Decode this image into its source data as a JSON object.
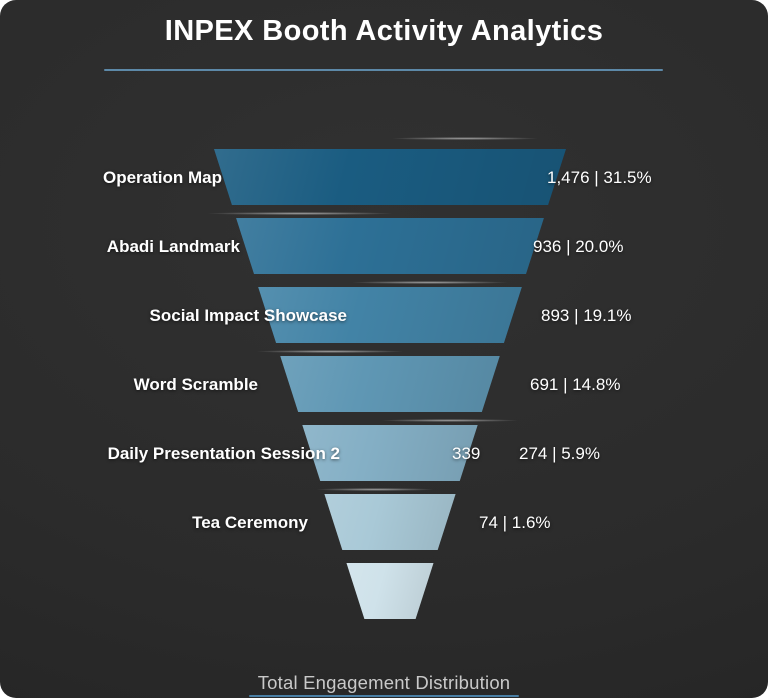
{
  "title": "INPEX Booth Activity Analytics",
  "footer": {
    "label": "Total Engagement Distribution"
  },
  "colors": {
    "background": "#2b2b2b",
    "title_text": "#ffffff",
    "title_divider": "#5d89a8",
    "footer_text": "#c9c9c9",
    "footer_divider": "#4a7fa5",
    "value_text": "#ffffff"
  },
  "chart_data": {
    "type": "funnel",
    "title": "INPEX Booth Activity Analytics",
    "footer_label": "Total Engagement Distribution",
    "value_format": "count | percent",
    "segments": [
      {
        "label": "Operation Map",
        "value": 1476,
        "value_display": "1,476",
        "percent": 31.5,
        "percent_display": "31.5%",
        "color": "#1a5c81"
      },
      {
        "label": "Abadi Landmark",
        "value": 936,
        "value_display": "936",
        "percent": 20.0,
        "percent_display": "20.0%",
        "color": "#2d7096"
      },
      {
        "label": "Social Impact Showcase",
        "value": 893,
        "value_display": "893",
        "percent": 19.1,
        "percent_display": "19.1%",
        "color": "#4283a6"
      },
      {
        "label": "Word Scramble",
        "value": 691,
        "value_display": "691",
        "percent": 14.8,
        "percent_display": "14.8%",
        "color": "#5f97b4"
      },
      {
        "label": "Daily Presentation Session 2",
        "value": 274,
        "value_display": "274",
        "percent": 5.9,
        "percent_display": "5.9%",
        "inner_value_display": "339",
        "color": "#84afc5"
      },
      {
        "label": "Tea Ceremony",
        "value": 74,
        "value_display": "74",
        "percent": 1.6,
        "percent_display": "1.6%",
        "color": "#a9c9d7"
      },
      {
        "label": "",
        "value": null,
        "value_display": "",
        "percent": null,
        "percent_display": "",
        "color": "#cfe2ea"
      }
    ]
  }
}
